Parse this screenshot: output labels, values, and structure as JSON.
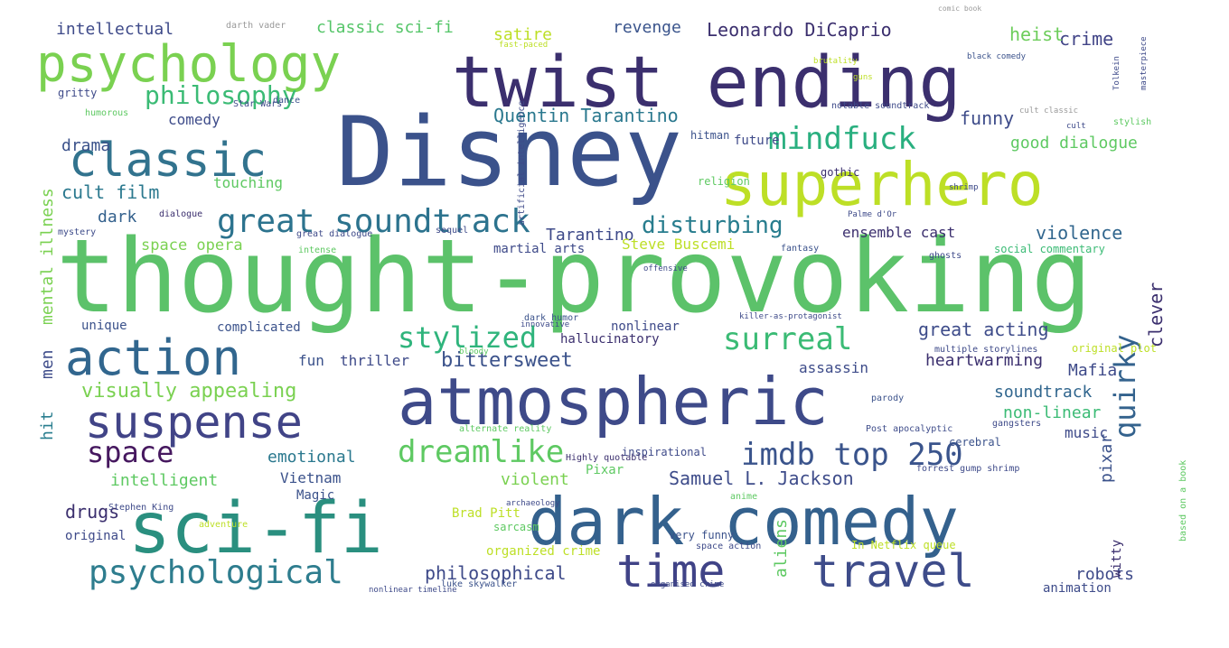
{
  "words": [
    {
      "text": "thought-provoking",
      "color": "#5cc26a"
    },
    {
      "text": "Disney",
      "color": "#3b528b"
    },
    {
      "text": "twist ending",
      "color": "#3b2f6e"
    },
    {
      "text": "atmospheric",
      "color": "#3e4a89"
    },
    {
      "text": "dark comedy",
      "color": "#34618d"
    },
    {
      "text": "sci-fi",
      "color": "#2a8f7f"
    },
    {
      "text": "superhero",
      "color": "#bddf26"
    },
    {
      "text": "psychology",
      "color": "#7ad151"
    },
    {
      "text": "classic",
      "color": "#32738e"
    },
    {
      "text": "suspense",
      "color": "#414487"
    },
    {
      "text": "action",
      "color": "#31668e"
    },
    {
      "text": "time",
      "color": "#404387"
    },
    {
      "text": "travel",
      "color": "#3e4c8a"
    },
    {
      "text": "psychological",
      "color": "#2e7d8e"
    },
    {
      "text": "great soundtrack",
      "color": "#2c738e"
    },
    {
      "text": "dreamlike",
      "color": "#5ec962"
    },
    {
      "text": "imdb top 250",
      "color": "#3a548c"
    },
    {
      "text": "mindfuck",
      "color": "#29af7f"
    },
    {
      "text": "surreal",
      "color": "#3bbb75"
    },
    {
      "text": "stylized",
      "color": "#2fb47c"
    },
    {
      "text": "space",
      "color": "#46185f"
    },
    {
      "text": "quirky",
      "color": "#33628d"
    },
    {
      "text": "philosophy",
      "color": "#3bbb75"
    },
    {
      "text": "disturbing",
      "color": "#287d8e"
    },
    {
      "text": "violence",
      "color": "#31668e"
    },
    {
      "text": "Quentin Tarantino",
      "color": "#2a788e"
    },
    {
      "text": "Leonardo DiCaprio",
      "color": "#3b2f6e"
    },
    {
      "text": "crime",
      "color": "#414487"
    },
    {
      "text": "heist",
      "color": "#6ccd5a"
    },
    {
      "text": "revenge",
      "color": "#3a548c"
    },
    {
      "text": "satire",
      "color": "#bddf26"
    },
    {
      "text": "classic sci-fi",
      "color": "#54c568"
    },
    {
      "text": "intellectual",
      "color": "#3e4a89"
    },
    {
      "text": "darth vader",
      "color": "#9a9a9a"
    },
    {
      "text": "funny",
      "color": "#3e4c8a"
    },
    {
      "text": "good dialogue",
      "color": "#5ec962"
    },
    {
      "text": "comedy",
      "color": "#3e4c8a"
    },
    {
      "text": "drama",
      "color": "#3b528b"
    },
    {
      "text": "cult film",
      "color": "#2a788e"
    },
    {
      "text": "dark",
      "color": "#34618d"
    },
    {
      "text": "touching",
      "color": "#5ec962"
    },
    {
      "text": "Tarantino",
      "color": "#3e4a89"
    },
    {
      "text": "ensemble cast",
      "color": "#3b2f6e"
    },
    {
      "text": "space opera",
      "color": "#7ad151"
    },
    {
      "text": "Steve Buscemi",
      "color": "#bddf26"
    },
    {
      "text": "mental illness",
      "color": "#7ad151"
    },
    {
      "text": "men",
      "color": "#3e4c8a"
    },
    {
      "text": "hit",
      "color": "#287d8e"
    },
    {
      "text": "visually appealing",
      "color": "#7ad151"
    },
    {
      "text": "fun",
      "color": "#3b528b"
    },
    {
      "text": "thriller",
      "color": "#3e4a89"
    },
    {
      "text": "bittersweet",
      "color": "#3b528b"
    },
    {
      "text": "assassin",
      "color": "#3e4c8a"
    },
    {
      "text": "heartwarming",
      "color": "#3b2f6e"
    },
    {
      "text": "Mafia",
      "color": "#3e4a89"
    },
    {
      "text": "great acting",
      "color": "#3e4c8a"
    },
    {
      "text": "clever",
      "color": "#3b2f6e"
    },
    {
      "text": "soundtrack",
      "color": "#31668e"
    },
    {
      "text": "non-linear",
      "color": "#3bbb75"
    },
    {
      "text": "music",
      "color": "#3e4a89"
    },
    {
      "text": "emotional",
      "color": "#2a788e"
    },
    {
      "text": "intelligent",
      "color": "#5ec962"
    },
    {
      "text": "Vietnam",
      "color": "#3b528b"
    },
    {
      "text": "drugs",
      "color": "#3b2f6e"
    },
    {
      "text": "violent",
      "color": "#7ad151"
    },
    {
      "text": "Samuel L. Jackson",
      "color": "#3e4c8a"
    },
    {
      "text": "aliens",
      "color": "#5ec962"
    },
    {
      "text": "pixar",
      "color": "#3b528b"
    },
    {
      "text": "philosophical",
      "color": "#3e4a89"
    },
    {
      "text": "robots",
      "color": "#3e4a89"
    },
    {
      "text": "witty",
      "color": "#3b2f6e"
    },
    {
      "text": "animation",
      "color": "#3e4c8a"
    },
    {
      "text": "original",
      "color": "#3e4a89"
    },
    {
      "text": "organized crime",
      "color": "#bddf26"
    },
    {
      "text": "complicated",
      "color": "#3b528b"
    },
    {
      "text": "unique",
      "color": "#3b528b"
    },
    {
      "text": "nonlinear",
      "color": "#3e4a89"
    },
    {
      "text": "hallucinatory",
      "color": "#3b2f6e"
    },
    {
      "text": "Pixar",
      "color": "#5ec962"
    },
    {
      "text": "Magic",
      "color": "#3b528b"
    },
    {
      "text": "Brad Pitt",
      "color": "#bddf26"
    },
    {
      "text": "martial arts",
      "color": "#3e4a89"
    },
    {
      "text": "future",
      "color": "#3e4a89"
    },
    {
      "text": "hitman",
      "color": "#3b528b"
    },
    {
      "text": "gritty",
      "color": "#3e4a89"
    },
    {
      "text": "cerebral",
      "color": "#3b528b"
    },
    {
      "text": "social commentary",
      "color": "#3bbb75"
    },
    {
      "text": "original plot",
      "color": "#bddf26"
    },
    {
      "text": "inspirational",
      "color": "#3e4a89"
    },
    {
      "text": "based on a book",
      "color": "#5ec962"
    },
    {
      "text": "In Netflix queue",
      "color": "#bddf26"
    },
    {
      "text": "very funny",
      "color": "#3b528b"
    },
    {
      "text": "sarcasm",
      "color": "#5ec962"
    },
    {
      "text": "Star Wars",
      "color": "#3e4a89"
    },
    {
      "text": "gothic",
      "color": "#3b2f6e"
    },
    {
      "text": "religion",
      "color": "#5ec962"
    },
    {
      "text": "dialogue",
      "color": "#3b2f6e"
    },
    {
      "text": "mystery",
      "color": "#3e4c8a"
    },
    {
      "text": "humorous",
      "color": "#5ec962"
    },
    {
      "text": "multiple storylines",
      "color": "#3e4a89"
    },
    {
      "text": "Highly quotable",
      "color": "#3b2f6e"
    },
    {
      "text": "gangsters",
      "color": "#3e4a89"
    },
    {
      "text": "Post apocalyptic",
      "color": "#3e4c8a"
    },
    {
      "text": "parody",
      "color": "#3b528b"
    },
    {
      "text": "Stephen King",
      "color": "#3e4a89"
    },
    {
      "text": "adventure",
      "color": "#bddf26"
    },
    {
      "text": "fantasy",
      "color": "#3b528b"
    },
    {
      "text": "ghosts",
      "color": "#3e4a89"
    },
    {
      "text": "dark humor",
      "color": "#3b528b"
    },
    {
      "text": "sequel",
      "color": "#3e4a89"
    },
    {
      "text": "intense",
      "color": "#5ec962"
    },
    {
      "text": "great dialogue",
      "color": "#3e4a89"
    },
    {
      "text": "luke skywalker",
      "color": "#3b528b"
    },
    {
      "text": "space action",
      "color": "#3e4a89"
    },
    {
      "text": "dance",
      "color": "#3b528b"
    },
    {
      "text": "notable soundtrack",
      "color": "#3e4a89"
    },
    {
      "text": "cult classic",
      "color": "#9a9a9a"
    },
    {
      "text": "stylish",
      "color": "#5ec962"
    },
    {
      "text": "Tolkein",
      "color": "#3e4a89"
    },
    {
      "text": "masterpiece",
      "color": "#3e4a89"
    },
    {
      "text": "black comedy",
      "color": "#3b528b"
    },
    {
      "text": "brutality",
      "color": "#bddf26"
    },
    {
      "text": "guns",
      "color": "#bddf26"
    },
    {
      "text": "artificial intelligence",
      "color": "#3e4a89"
    },
    {
      "text": "alternate reality",
      "color": "#5ec962"
    },
    {
      "text": "archaeology",
      "color": "#3e4a89"
    },
    {
      "text": "anime",
      "color": "#5ec962"
    },
    {
      "text": "innovative",
      "color": "#3e4a89"
    },
    {
      "text": "bloody",
      "color": "#5ec962"
    },
    {
      "text": "killer-as-protagonist",
      "color": "#3e4a89"
    },
    {
      "text": "forrest gump shrimp",
      "color": "#3e4a89"
    },
    {
      "text": "nonlinear timeline",
      "color": "#3e4a89"
    },
    {
      "text": "organised crime",
      "color": "#3e4a89"
    },
    {
      "text": "fast-paced",
      "color": "#bddf26"
    },
    {
      "text": "shrimp",
      "color": "#3e4a89"
    },
    {
      "text": "comic book",
      "color": "#9a9a9a"
    },
    {
      "text": "cult",
      "color": "#3e4a89"
    },
    {
      "text": "Palme d'Or",
      "color": "#3e4a89"
    },
    {
      "text": "offensive",
      "color": "#3e4a89"
    }
  ]
}
